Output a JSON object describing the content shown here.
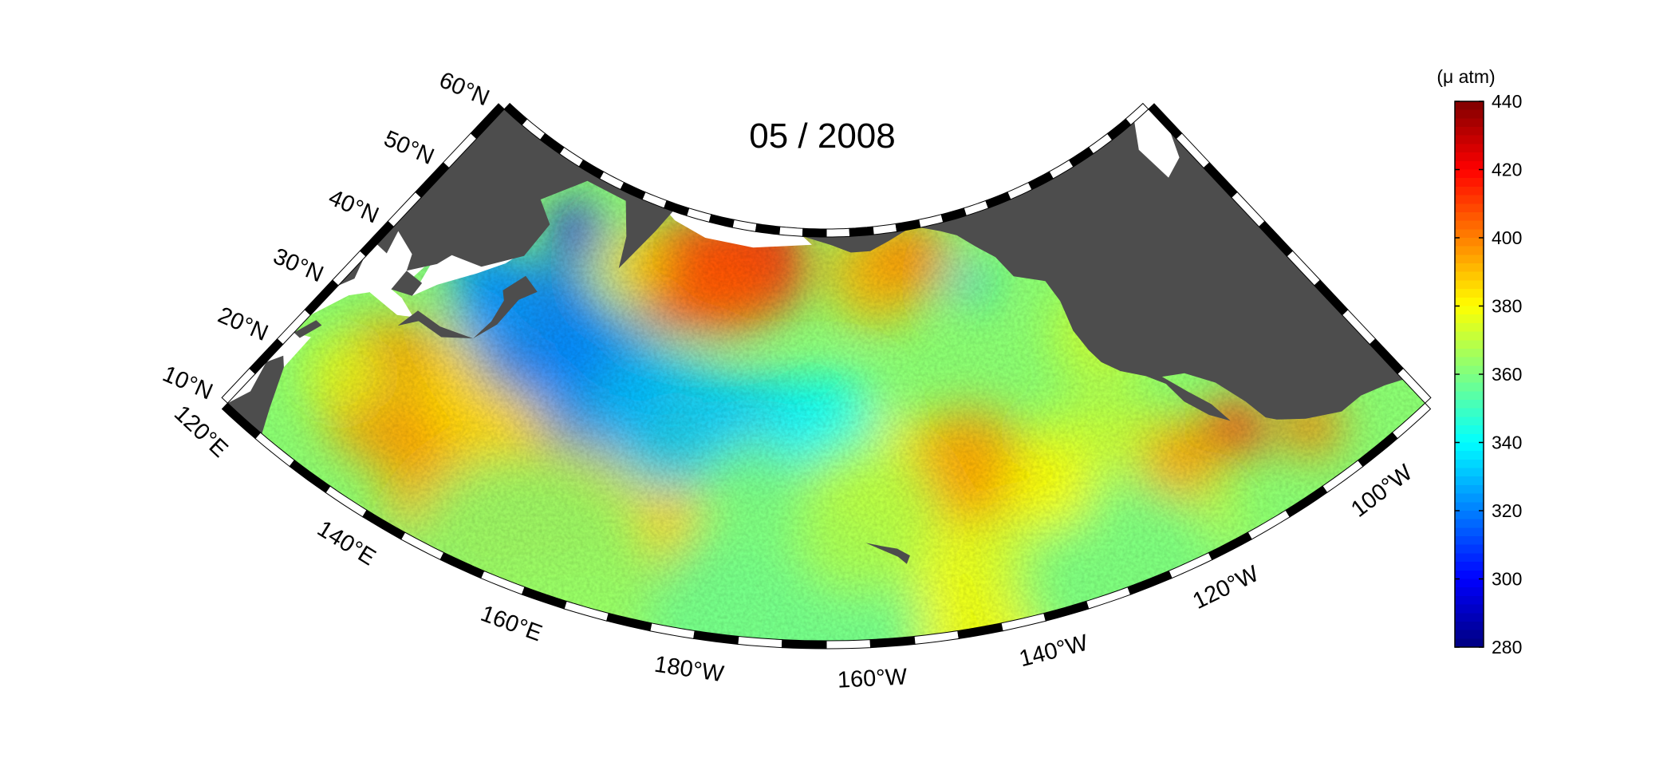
{
  "title": "05 / 2008",
  "map": {
    "projection": "conic",
    "lon_range": [
      "120°E",
      "90°W"
    ],
    "lat_range": [
      "10°N",
      "60°N"
    ],
    "lat_labels": [
      "10°N",
      "20°N",
      "30°N",
      "40°N",
      "50°N",
      "60°N"
    ],
    "lon_labels": [
      "120°E",
      "140°E",
      "160°E",
      "180°W",
      "160°W",
      "140°W",
      "120°W",
      "100°W"
    ],
    "land_color": "#4d4d4d",
    "no_data_color": "#ffffff",
    "frame_colors": [
      "#000000",
      "#ffffff"
    ]
  },
  "colorbar": {
    "unit": "(μ atm)",
    "min": 280,
    "max": 440,
    "colormap": "jet",
    "ticks": [
      "280",
      "300",
      "320",
      "340",
      "360",
      "380",
      "400",
      "420",
      "440"
    ]
  }
}
